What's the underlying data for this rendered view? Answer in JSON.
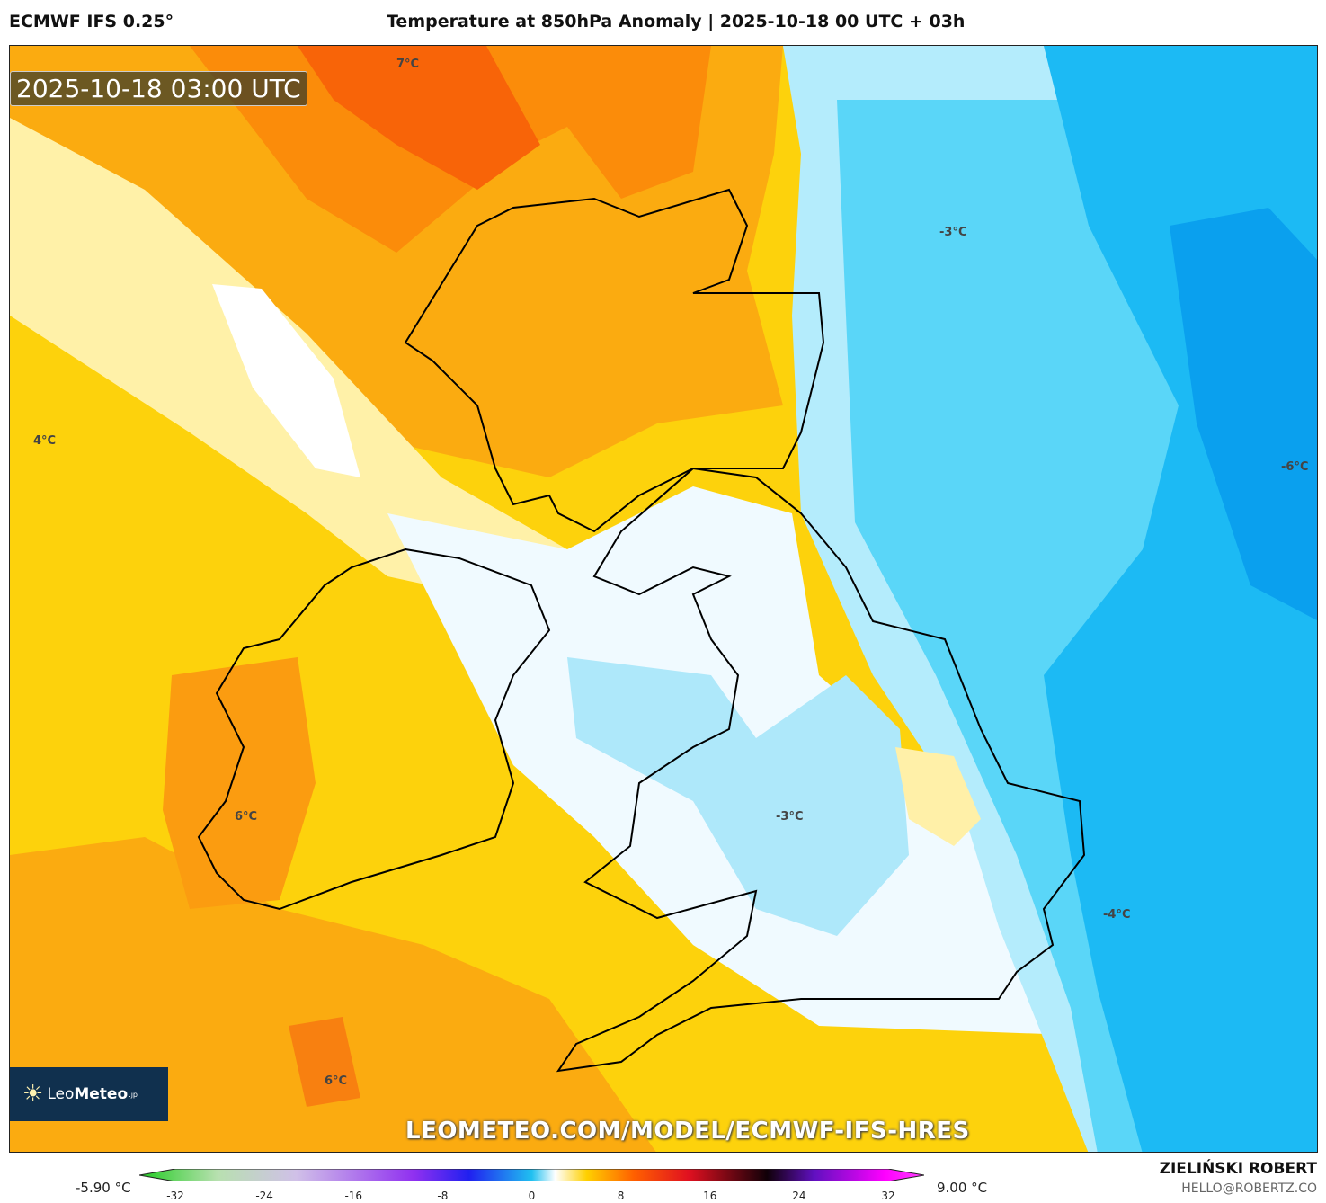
{
  "header": {
    "model": "ECMWF IFS 0.25°",
    "title": "Temperature at 850hPa Anomaly | 2025-10-18 00 UTC + 03h"
  },
  "map": {
    "timestamp": "2025-10-18 03:00 UTC",
    "labels": [
      "7°C",
      "-3°C",
      "4°C",
      "-6°C",
      "6°C",
      "-3°C",
      "-4°C",
      "6°C"
    ],
    "watermark": "LEOMETEO.COM/MODEL/ECMWF-IFS-HRES",
    "logo": {
      "name": "Leo",
      "name_bold": "Meteo",
      "suffix": ".jp"
    }
  },
  "colorbar": {
    "min_label": "-5.90 °C",
    "max_label": "9.00 °C",
    "ticks": [
      -32,
      -24,
      -16,
      -8,
      0,
      8,
      16,
      24,
      32
    ],
    "range": [
      -34,
      34
    ]
  },
  "footer": {
    "author": "ZIELIŃSKI ROBERT",
    "email": "HELLO@ROBERTZ.CO"
  }
}
